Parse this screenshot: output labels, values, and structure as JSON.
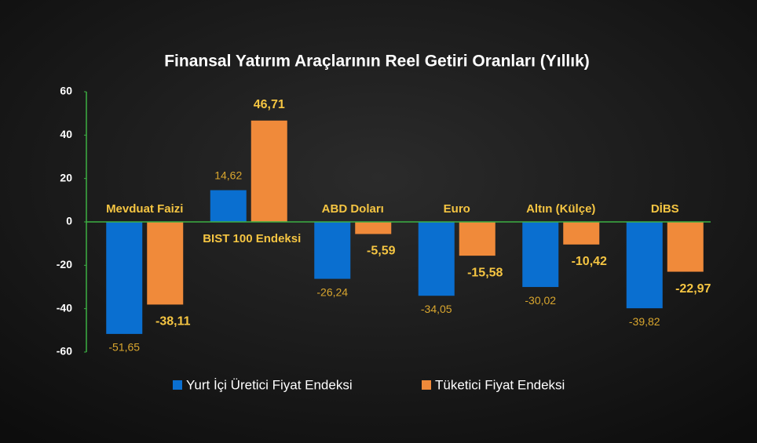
{
  "chart_data": {
    "type": "bar",
    "title": "Finansal Yatırım Araçlarının Reel Getiri Oranları (Yıllık)",
    "categories": [
      "Mevduat Faizi",
      "BIST 100 Endeksi",
      "ABD Doları",
      "Euro",
      "Altın (Külçe)",
      "DİBS"
    ],
    "series": [
      {
        "name": "Yurt İçi Üretici Fiyat Endeksi",
        "color": "#0a6fd0",
        "values": [
          -51.65,
          14.62,
          -26.24,
          -34.05,
          -30.02,
          -39.82
        ],
        "value_labels": [
          "-51,65",
          "14,62",
          "-26,24",
          "-34,05",
          "-30,02",
          "-39,82"
        ]
      },
      {
        "name": "Tüketici Fiyat Endeksi",
        "color": "#f08a3a",
        "values": [
          -38.11,
          46.71,
          -5.59,
          -15.58,
          -10.42,
          -22.97
        ],
        "value_labels": [
          "-38,11",
          "46,71",
          "-5,59",
          "-15,58",
          "-10,42",
          "-22,97"
        ]
      }
    ],
    "ylim": [
      -60,
      60
    ],
    "yticks": [
      -60,
      -40,
      -20,
      0,
      20,
      40,
      60
    ],
    "legend": "bottom"
  }
}
